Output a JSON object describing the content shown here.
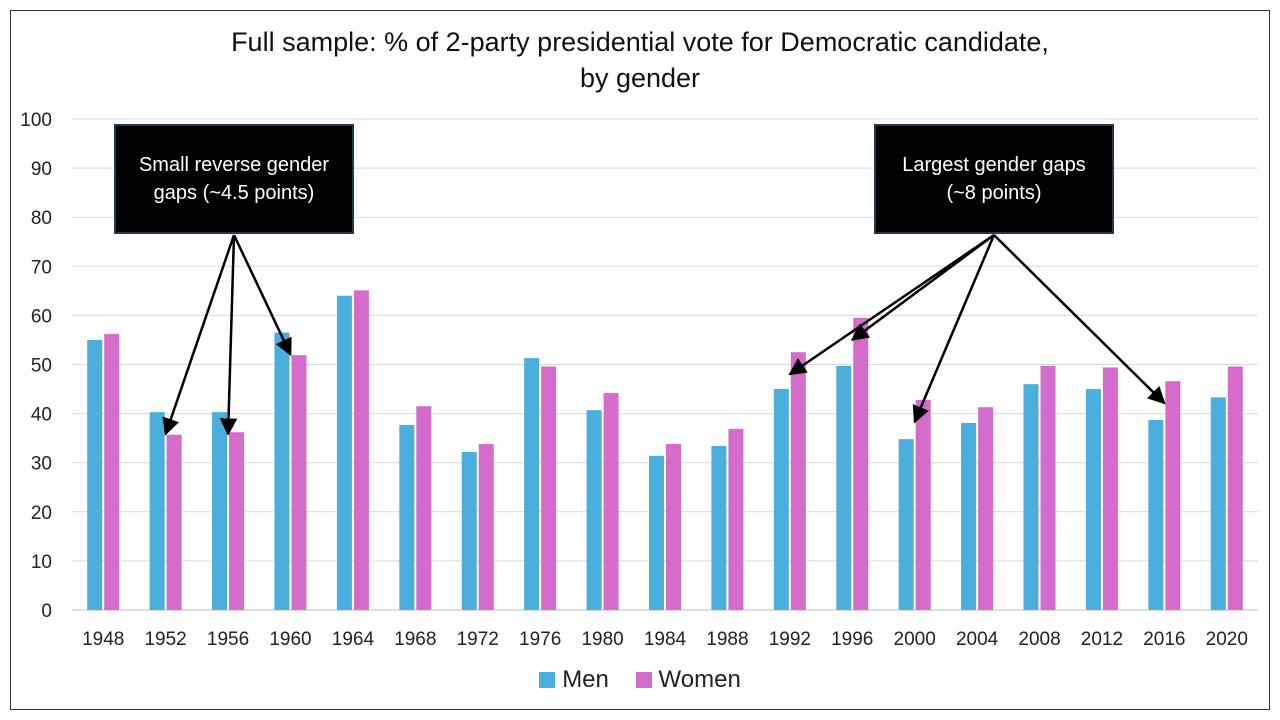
{
  "title": [
    "Full sample: % of 2-party presidential vote for Democratic candidate,",
    "by gender"
  ],
  "legend": {
    "men": "Men",
    "women": "Women"
  },
  "colors": {
    "men": "#4AAFDD",
    "women": "#D56CCB",
    "gridline": "#d9d9d9",
    "arrow": "#000000",
    "callout_bg": "#000000"
  },
  "callouts": {
    "left": {
      "lines": [
        "Small reverse gender",
        "gaps (~4.5 points)"
      ],
      "targets": [
        "1952",
        "1956",
        "1960"
      ]
    },
    "right": {
      "lines": [
        "Largest gender gaps",
        "(~8 points)"
      ],
      "targets": [
        "1992",
        "1996",
        "2000",
        "2016"
      ]
    }
  },
  "chart_data": {
    "type": "bar",
    "title": "Full sample: % of 2-party presidential vote for Democratic candidate, by gender",
    "categories": [
      "1948",
      "1952",
      "1956",
      "1960",
      "1964",
      "1968",
      "1972",
      "1976",
      "1980",
      "1984",
      "1988",
      "1992",
      "1996",
      "2000",
      "2004",
      "2008",
      "2012",
      "2016",
      "2020"
    ],
    "series": [
      {
        "name": "Men",
        "values": [
          55,
          40.3,
          40.3,
          56.5,
          64,
          37.7,
          32.2,
          51.3,
          40.7,
          31.4,
          33.4,
          45,
          49.7,
          34.8,
          38.1,
          46,
          45,
          38.7,
          43.3
        ]
      },
      {
        "name": "Women",
        "values": [
          56.2,
          35.7,
          36.2,
          51.9,
          65.1,
          41.5,
          33.8,
          49.6,
          44.2,
          33.8,
          36.9,
          52.5,
          59.5,
          42.8,
          41.3,
          49.7,
          49.4,
          46.6,
          49.6
        ]
      }
    ],
    "yticks": [
      "0",
      "10",
      "20",
      "30",
      "40",
      "50",
      "60",
      "70",
      "80",
      "90",
      "100"
    ],
    "ylim": [
      0,
      100
    ],
    "xlabel": "",
    "ylabel": "",
    "grid": true,
    "legend_position": "bottom"
  }
}
